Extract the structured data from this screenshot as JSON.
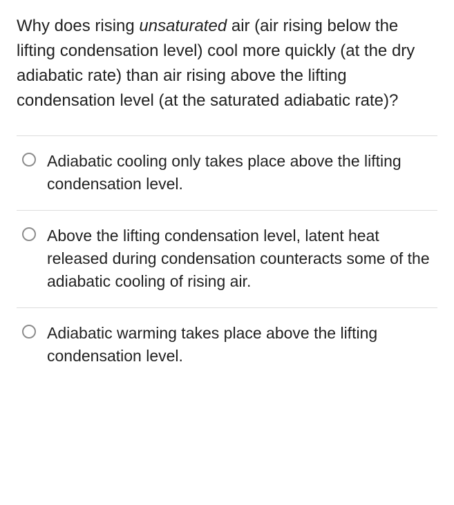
{
  "question": {
    "pre_italic": "Why does rising ",
    "italic_word": "unsaturated",
    "post_italic": " air (air rising below the lifting condensation level) cool more quickly (at the dry adiabatic rate) than air rising above the lifting condensation level (at the saturated adiabatic rate)?"
  },
  "options": [
    {
      "text": "Adiabatic cooling only takes place above the lifting condensation level.",
      "selected": false
    },
    {
      "text": "Above the lifting condensation level, latent heat released during condensation counteracts some of the adiabatic cooling of rising air.",
      "selected": false
    },
    {
      "text": "Adiabatic warming takes place above the lifting condensation level.",
      "selected": false
    }
  ],
  "colors": {
    "text": "#212121",
    "background": "#ffffff",
    "divider": "#dcdcdc",
    "radio_border": "#8c8c8c"
  },
  "typography": {
    "question_fontsize": 24,
    "option_fontsize": 23,
    "line_height": 1.5
  }
}
